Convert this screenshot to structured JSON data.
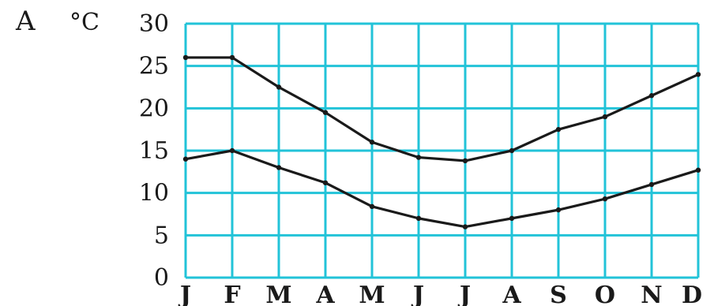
{
  "chart_data": {
    "type": "line",
    "panel_label": "A",
    "ylabel": "°C",
    "categories": [
      "J",
      "F",
      "M",
      "A",
      "M",
      "J",
      "J",
      "A",
      "S",
      "O",
      "N",
      "D"
    ],
    "yticks": [
      "0",
      "5",
      "10",
      "15",
      "20",
      "25",
      "30"
    ],
    "ylim": [
      0,
      30
    ],
    "grid": true,
    "series": [
      {
        "values": [
          26,
          26,
          22.5,
          19.5,
          16,
          14.2,
          13.8,
          15,
          17.5,
          19,
          21.5,
          24
        ]
      },
      {
        "values": [
          14,
          15,
          13,
          11.2,
          8.4,
          7,
          6,
          7,
          8,
          9.3,
          11,
          12.7
        ]
      }
    ],
    "colors": {
      "grid": "#22c3d8",
      "lines": "#1a1a1a"
    }
  }
}
